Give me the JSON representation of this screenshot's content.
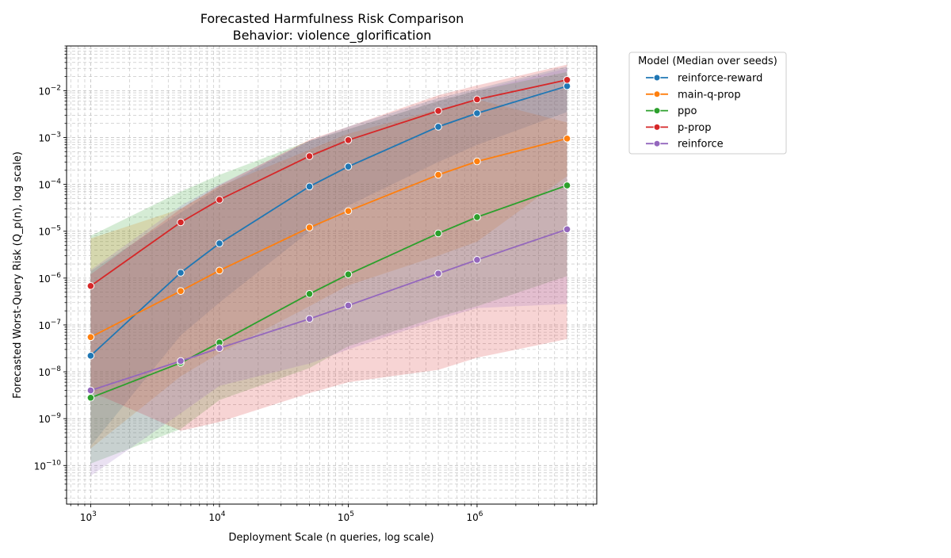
{
  "chart_data": {
    "type": "line",
    "title": "Forecasted Harmfulness Risk Comparison",
    "subtitle": "Behavior: violence_glorification",
    "xlabel": "Deployment Scale (n queries, log scale)",
    "ylabel": "Forecasted Worst-Query Risk (Q_p(n), log scale)",
    "xscale": "log",
    "yscale": "log",
    "xlim": [
      650,
      8500000
    ],
    "ylim": [
      1.5e-11,
      0.09
    ],
    "grid": true,
    "legend_title": "Model (Median over seeds)",
    "legend_position": "outside-right",
    "x_ticks": [
      {
        "value": 1000,
        "base": "10",
        "exp": "3"
      },
      {
        "value": 10000,
        "base": "10",
        "exp": "4"
      },
      {
        "value": 100000,
        "base": "10",
        "exp": "5"
      },
      {
        "value": 1000000,
        "base": "10",
        "exp": "6"
      }
    ],
    "y_ticks": [
      {
        "value": 1e-10,
        "base": "10",
        "exp": "−10"
      },
      {
        "value": 1e-09,
        "base": "10",
        "exp": "−9"
      },
      {
        "value": 1e-08,
        "base": "10",
        "exp": "−8"
      },
      {
        "value": 1e-07,
        "base": "10",
        "exp": "−7"
      },
      {
        "value": 1e-06,
        "base": "10",
        "exp": "−6"
      },
      {
        "value": 1e-05,
        "base": "10",
        "exp": "−5"
      },
      {
        "value": 0.0001,
        "base": "10",
        "exp": "−4"
      },
      {
        "value": 0.001,
        "base": "10",
        "exp": "−3"
      },
      {
        "value": 0.01,
        "base": "10",
        "exp": "−2"
      }
    ],
    "x": [
      1000,
      5000,
      10000,
      50000,
      100000,
      500000,
      1000000,
      5000000
    ],
    "series": [
      {
        "name": "reinforce-reward",
        "color": "#1f77b4",
        "values": [
          2.2e-08,
          1.3e-06,
          5.5e-06,
          9e-05,
          0.00024,
          0.0017,
          0.0033,
          0.0125
        ],
        "lower": [
          2.6e-10,
          6e-08,
          3e-07,
          1e-05,
          3.5e-05,
          0.0003,
          0.0007,
          0.0035
        ],
        "upper": [
          1.4e-06,
          2.5e-05,
          8.5e-05,
          0.00085,
          0.0017,
          0.007,
          0.011,
          0.033
        ]
      },
      {
        "name": "main-q-prop",
        "color": "#ff7f0e",
        "values": [
          5.5e-08,
          5.3e-07,
          1.45e-06,
          1.2e-05,
          2.7e-05,
          0.00016,
          0.00031,
          0.00095
        ],
        "lower": [
          2.3e-10,
          8e-09,
          2.5e-08,
          2.5e-07,
          7e-07,
          3e-06,
          6e-06,
          0.00015
        ],
        "upper": [
          7e-06,
          3e-05,
          9e-05,
          0.00055,
          0.0012,
          0.004,
          0.0065,
          0.0021
        ]
      },
      {
        "name": "ppo",
        "color": "#2ca02c",
        "values": [
          2.8e-09,
          1.55e-08,
          4.2e-08,
          4.6e-07,
          1.2e-06,
          9e-06,
          2e-05,
          9.5e-05
        ],
        "lower": [
          1.1e-10,
          6e-10,
          2.5e-09,
          1.2e-08,
          3.5e-08,
          1.5e-07,
          2.5e-07,
          1.1e-06
        ],
        "upper": [
          8e-06,
          7e-05,
          0.00016,
          0.00085,
          0.0015,
          0.006,
          0.01,
          0.025
        ]
      },
      {
        "name": "p-prop",
        "color": "#d62728",
        "values": [
          6.8e-07,
          1.55e-05,
          4.7e-05,
          0.0004,
          0.00088,
          0.0037,
          0.0065,
          0.017
        ],
        "lower": [
          3.8e-09,
          5.5e-10,
          8.5e-10,
          3.5e-09,
          6e-09,
          1.1e-08,
          2e-08,
          5e-08
        ],
        "upper": [
          1.2e-06,
          3e-05,
          9.5e-05,
          0.0009,
          0.0017,
          0.008,
          0.013,
          0.036
        ]
      },
      {
        "name": "reinforce",
        "color": "#9467bd",
        "values": [
          4e-09,
          1.7e-08,
          3.2e-08,
          1.35e-07,
          2.6e-07,
          1.25e-06,
          2.45e-06,
          1.1e-05
        ],
        "lower": [
          6e-11,
          1.3e-09,
          5e-09,
          1.5e-08,
          3e-08,
          1.3e-07,
          2.3e-07,
          2.8e-07
        ],
        "upper": [
          1.5e-06,
          3.5e-05,
          0.0001,
          0.00085,
          0.0015,
          0.006,
          0.01,
          0.03
        ]
      }
    ]
  }
}
